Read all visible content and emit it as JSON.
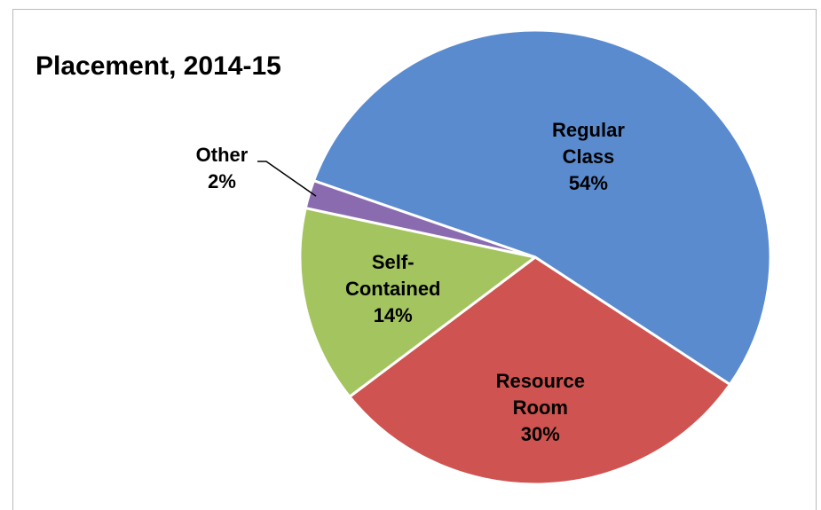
{
  "chart_data": {
    "type": "pie",
    "title": "Placement, 2014-15",
    "categories": [
      "Regular Class",
      "Resource Room",
      "Self-Contained",
      "Other"
    ],
    "values": [
      54,
      30,
      14,
      2
    ],
    "value_labels": [
      "54%",
      "30%",
      "14%",
      "2%"
    ],
    "colors": [
      "#5a8bcf",
      "#cf5350",
      "#a3c45e",
      "#8a6bb0"
    ]
  }
}
